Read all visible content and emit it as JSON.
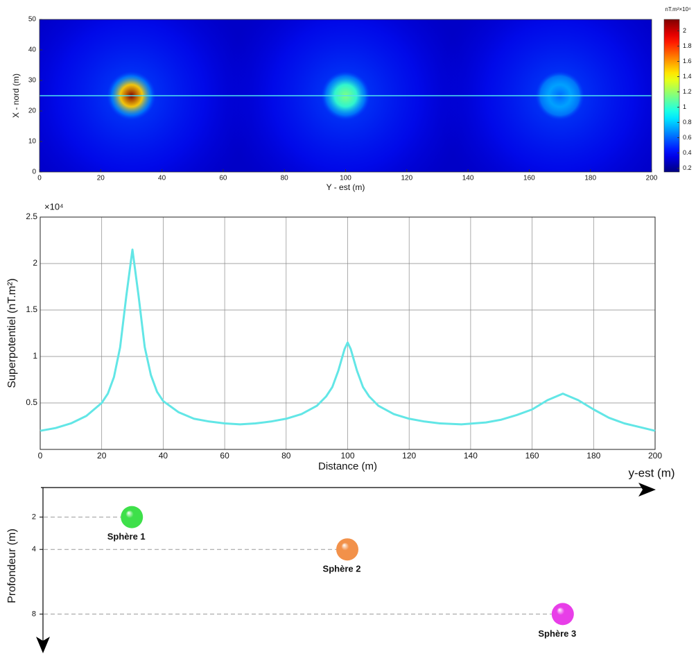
{
  "chart_data": [
    {
      "type": "heatmap",
      "xlabel": "Y - est (m)",
      "ylabel": "X - nord (m)",
      "xlim": [
        0,
        200
      ],
      "ylim": [
        0,
        50
      ],
      "xticks": [
        0,
        20,
        40,
        60,
        80,
        100,
        120,
        140,
        160,
        180,
        200
      ],
      "yticks": [
        0,
        10,
        20,
        30,
        40,
        50
      ],
      "x": [
        30,
        100,
        170
      ],
      "y": [
        25,
        25,
        25
      ],
      "values": [
        2.15,
        1.15,
        0.6
      ],
      "profile_y": 25,
      "profile_color": "#4fe3f0",
      "colormap": "jet",
      "colorbar_label": "nT.m²×10⁴",
      "clim": [
        0.15,
        2.15
      ],
      "cticks": [
        0.2,
        0.4,
        0.6,
        0.8,
        1,
        1.2,
        1.4,
        1.6,
        1.8,
        2
      ]
    },
    {
      "type": "line",
      "xlabel": "Distance (m)",
      "ylabel": "Superpotentiel (nT.m²)",
      "y_multiplier": "×10⁴",
      "xlim": [
        0,
        200
      ],
      "ylim": [
        0,
        2.5
      ],
      "xticks": [
        0,
        20,
        40,
        60,
        80,
        100,
        120,
        140,
        160,
        180,
        200
      ],
      "yticks": [
        0.5,
        1,
        1.5,
        2,
        2.5
      ],
      "grid": true,
      "x": [
        0,
        5,
        10,
        15,
        20,
        22,
        24,
        26,
        28,
        30,
        32,
        34,
        36,
        38,
        40,
        45,
        50,
        55,
        60,
        65,
        70,
        75,
        80,
        85,
        90,
        93,
        95,
        97,
        99,
        100,
        101,
        103,
        105,
        107,
        110,
        115,
        120,
        125,
        130,
        137,
        145,
        150,
        155,
        160,
        165,
        170,
        175,
        180,
        185,
        190,
        195,
        200
      ],
      "series": [
        {
          "color": "#62e6e6",
          "values": [
            0.2,
            0.23,
            0.28,
            0.36,
            0.5,
            0.6,
            0.78,
            1.1,
            1.65,
            2.15,
            1.65,
            1.1,
            0.8,
            0.62,
            0.52,
            0.4,
            0.33,
            0.3,
            0.28,
            0.27,
            0.28,
            0.3,
            0.33,
            0.38,
            0.47,
            0.57,
            0.67,
            0.85,
            1.08,
            1.15,
            1.08,
            0.85,
            0.67,
            0.57,
            0.47,
            0.38,
            0.33,
            0.3,
            0.28,
            0.27,
            0.29,
            0.32,
            0.37,
            0.43,
            0.53,
            0.6,
            0.53,
            0.43,
            0.34,
            0.28,
            0.24,
            0.2
          ]
        }
      ]
    },
    {
      "type": "scatter",
      "xlabel": "y-est (m)",
      "ylabel": "Profondeur (m)",
      "xlim": [
        0,
        200
      ],
      "ylim": [
        0,
        10
      ],
      "yticks": [
        2,
        4,
        8
      ],
      "x": [
        30,
        100,
        170
      ],
      "y": [
        2,
        4,
        8
      ],
      "labels": [
        "Sphère 1",
        "Sphère 2",
        "Sphère 3"
      ],
      "colors": [
        "#3ee04a",
        "#f2914a",
        "#e83ee8"
      ]
    }
  ]
}
